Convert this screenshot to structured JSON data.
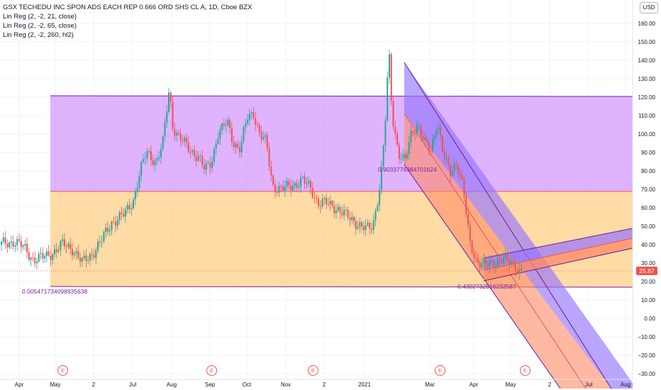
{
  "legend": {
    "title": "GSX TECHEDU INC SPON ADS EACH REP 0.666 ORD SHS CL A, 1D, Cboe BZX",
    "study1": "Lin Reg (2, -2, 21, close)",
    "study2": "Lin Reg (2, -2, 65, close)",
    "study3": "Lin Reg (2, -2, 260, hl2)"
  },
  "currency": "USD",
  "last_price": "25.87",
  "annotations": {
    "corr_long": "0.005471734098935638",
    "corr_mid": "0.9033776384701624",
    "corr_short": "0.4302732516232587"
  },
  "earnings_label": "E",
  "colors": {
    "bull": "#26a69a",
    "bear": "#ef5350",
    "channel_upper": "#cc80ff",
    "channel_lower": "#ffcc80",
    "channel_line": "#7b1fa2",
    "down_upper": "#9575ff",
    "down_lower": "#ff8a65"
  },
  "chart_data": {
    "type": "candlestick",
    "title": "GSX TECHEDU INC SPON ADS EACH REP 0.666 ORD SHS CL A, 1D, Cboe BZX",
    "y_ticks": [
      "160.00",
      "150.00",
      "140.00",
      "130.00",
      "120.00",
      "110.00",
      "100.00",
      "90.00",
      "80.00",
      "70.00",
      "60.00",
      "50.00",
      "40.00",
      "30.00",
      "20.00",
      "10.00",
      "0.00",
      "−10.00",
      "−20.00",
      "−30.00"
    ],
    "y_tick_values": [
      160,
      150,
      140,
      130,
      120,
      110,
      100,
      90,
      80,
      70,
      60,
      50,
      40,
      30,
      20,
      10,
      0,
      -10,
      -20,
      -30
    ],
    "x_ticks": [
      "Apr",
      "May",
      "2",
      "Jul",
      "Aug",
      "Sep",
      "Oct",
      "Nov",
      "2",
      "2021",
      "Mar",
      "Apr",
      "May",
      "2",
      "Jul",
      "Aug"
    ],
    "ylim": [
      -32,
      170
    ],
    "last_close": 25.87,
    "price_path": [
      [
        0,
        40
      ],
      [
        0.02,
        42
      ],
      [
        0.035,
        38
      ],
      [
        0.05,
        32
      ],
      [
        0.065,
        33
      ],
      [
        0.08,
        36
      ],
      [
        0.095,
        40
      ],
      [
        0.11,
        38
      ],
      [
        0.125,
        30
      ],
      [
        0.14,
        35
      ],
      [
        0.155,
        42
      ],
      [
        0.17,
        52
      ],
      [
        0.19,
        56
      ],
      [
        0.205,
        65
      ],
      [
        0.215,
        80
      ],
      [
        0.225,
        90
      ],
      [
        0.24,
        85
      ],
      [
        0.25,
        95
      ],
      [
        0.26,
        125
      ],
      [
        0.265,
        105
      ],
      [
        0.275,
        98
      ],
      [
        0.29,
        92
      ],
      [
        0.305,
        88
      ],
      [
        0.315,
        80
      ],
      [
        0.325,
        85
      ],
      [
        0.335,
        100
      ],
      [
        0.35,
        106
      ],
      [
        0.36,
        95
      ],
      [
        0.37,
        92
      ],
      [
        0.38,
        108
      ],
      [
        0.39,
        112
      ],
      [
        0.4,
        100
      ],
      [
        0.41,
        95
      ],
      [
        0.42,
        72
      ],
      [
        0.435,
        70
      ],
      [
        0.45,
        72
      ],
      [
        0.465,
        75
      ],
      [
        0.48,
        70
      ],
      [
        0.49,
        63
      ],
      [
        0.505,
        62
      ],
      [
        0.52,
        60
      ],
      [
        0.535,
        55
      ],
      [
        0.55,
        52
      ],
      [
        0.565,
        48
      ],
      [
        0.575,
        50
      ],
      [
        0.585,
        70
      ],
      [
        0.59,
        85
      ],
      [
        0.595,
        110
      ],
      [
        0.6,
        145
      ],
      [
        0.605,
        110
      ],
      [
        0.615,
        90
      ],
      [
        0.625,
        85
      ],
      [
        0.635,
        100
      ],
      [
        0.645,
        106
      ],
      [
        0.655,
        95
      ],
      [
        0.665,
        90
      ],
      [
        0.675,
        108
      ],
      [
        0.685,
        88
      ],
      [
        0.695,
        78
      ],
      [
        0.705,
        85
      ],
      [
        0.715,
        72
      ],
      [
        0.725,
        40
      ],
      [
        0.735,
        32
      ],
      [
        0.745,
        30
      ],
      [
        0.755,
        28
      ],
      [
        0.765,
        30
      ],
      [
        0.775,
        34
      ],
      [
        0.785,
        30
      ],
      [
        0.795,
        28
      ],
      [
        0.805,
        26
      ]
    ]
  }
}
